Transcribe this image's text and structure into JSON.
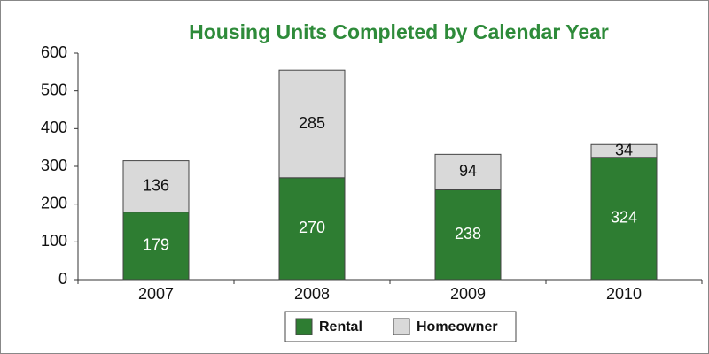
{
  "chart_data": {
    "type": "stacked_bar",
    "title": "Housing Units Completed by Calendar Year",
    "categories": [
      "2007",
      "2008",
      "2009",
      "2010"
    ],
    "series": [
      {
        "name": "Rental",
        "color": "#2e7d32",
        "values": [
          179,
          270,
          238,
          324
        ]
      },
      {
        "name": "Homeowner",
        "color": "#d9d9d9",
        "values": [
          136,
          285,
          94,
          34
        ]
      }
    ],
    "ylim": [
      0,
      600
    ],
    "yticks": [
      0,
      100,
      200,
      300,
      400,
      500,
      600
    ],
    "grid": false,
    "legend": "bottom"
  }
}
